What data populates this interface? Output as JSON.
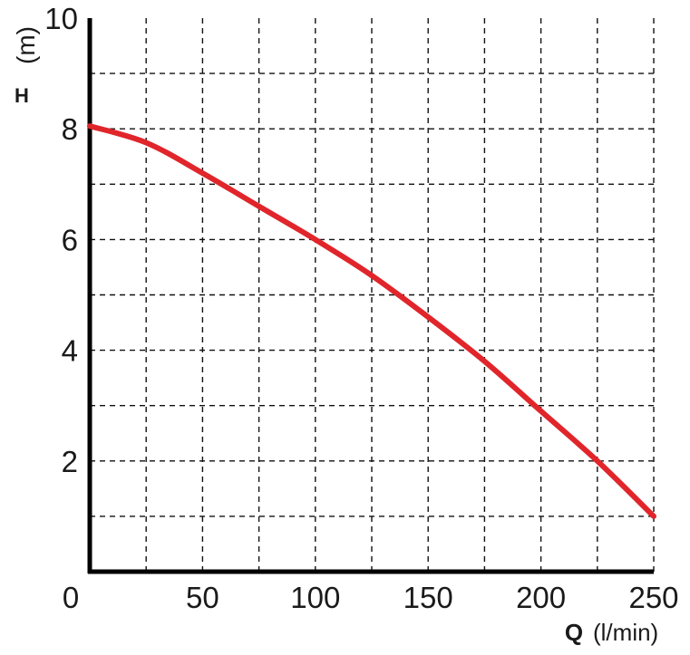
{
  "chart_data": {
    "type": "line",
    "title": "",
    "xlabel_symbol": "Q",
    "xlabel_unit": "(l/min)",
    "ylabel_symbol": "H",
    "ylabel_unit": "(m)",
    "xlim": [
      0,
      250
    ],
    "ylim": [
      0,
      10
    ],
    "x_ticks": [
      0,
      50,
      100,
      150,
      200,
      250
    ],
    "y_ticks": [
      2,
      4,
      6,
      8,
      10
    ],
    "grid": true,
    "grid_x_step": 25,
    "grid_y_step": 1,
    "series": [
      {
        "color": "#e0252b",
        "x": [
          0,
          25,
          50,
          75,
          100,
          125,
          150,
          175,
          200,
          225,
          250
        ],
        "y": [
          8.05,
          7.75,
          7.2,
          6.6,
          6.0,
          5.35,
          4.6,
          3.8,
          2.9,
          2.0,
          1.0
        ]
      }
    ]
  }
}
